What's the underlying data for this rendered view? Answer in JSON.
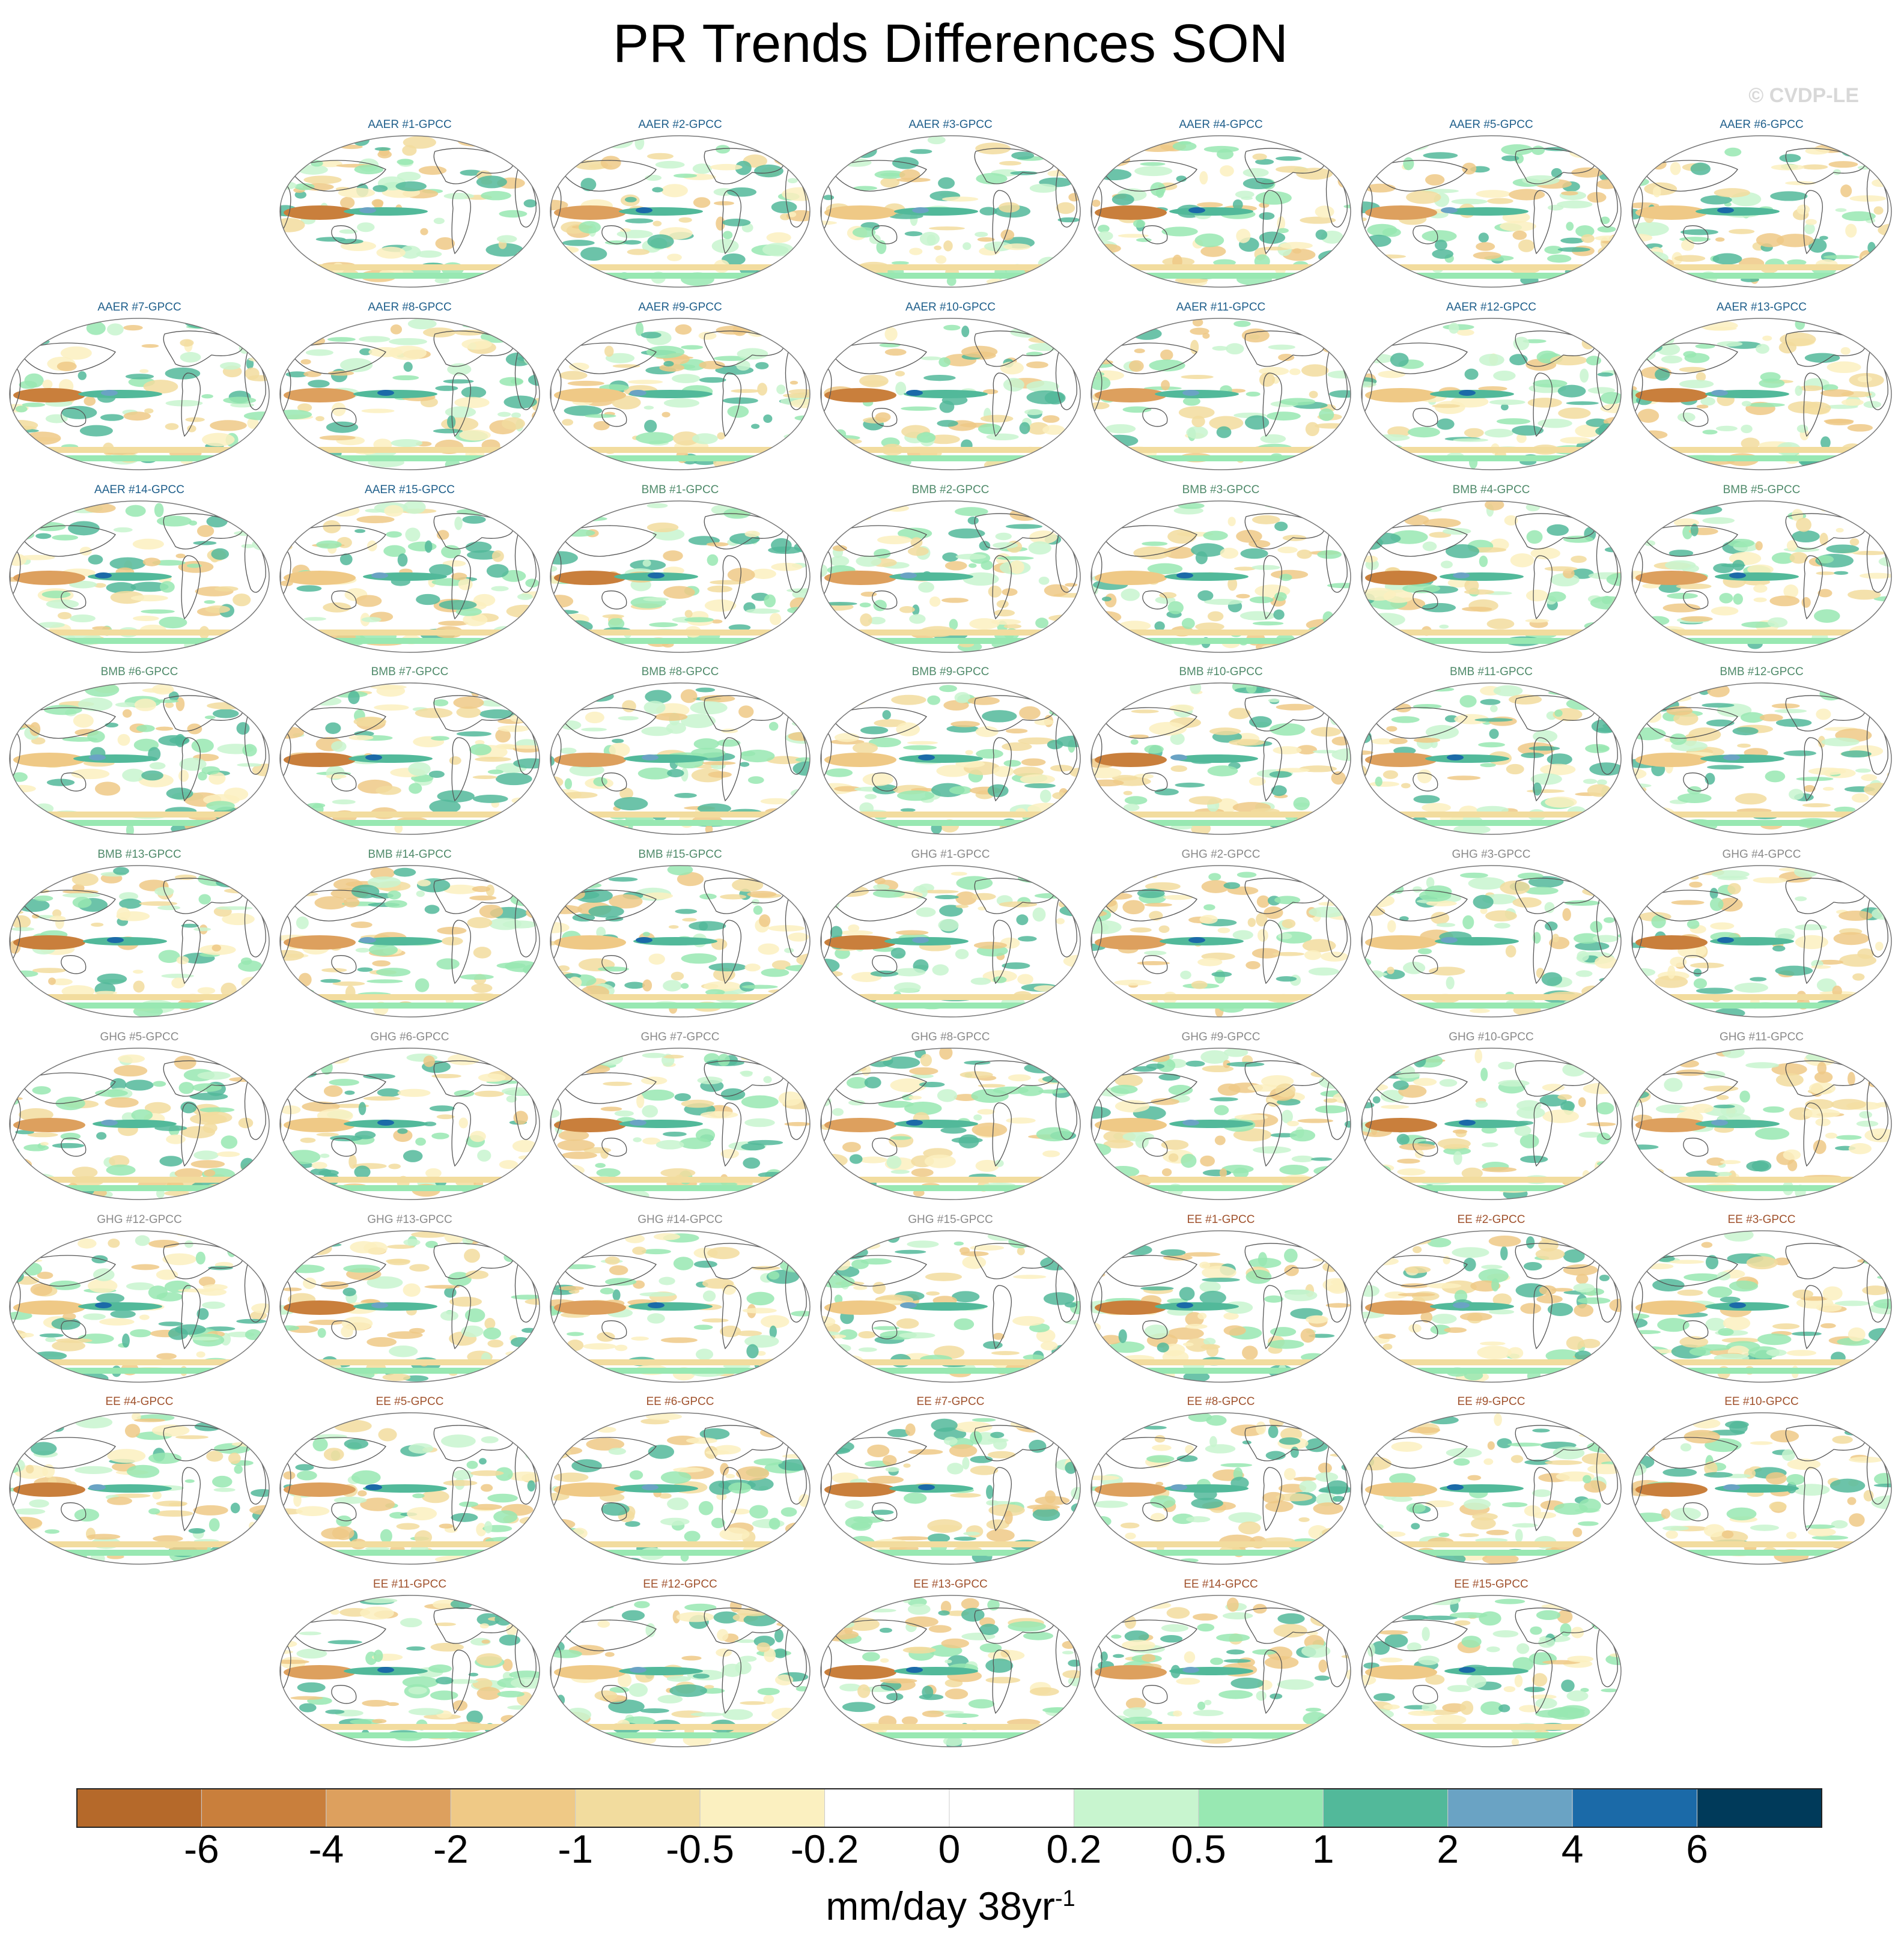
{
  "title": "PR Trends Differences SON",
  "copyright": "© CVDP-LE",
  "panels": [
    "AAER #1-GPCC",
    "AAER #2-GPCC",
    "AAER #3-GPCC",
    "AAER #4-GPCC",
    "AAER #5-GPCC",
    "AAER #6-GPCC",
    "AAER #7-GPCC",
    "AAER #8-GPCC",
    "AAER #9-GPCC",
    "AAER #10-GPCC",
    "AAER #11-GPCC",
    "AAER #12-GPCC",
    "AAER #13-GPCC",
    "AAER #14-GPCC",
    "AAER #15-GPCC",
    "BMB #1-GPCC",
    "BMB #2-GPCC",
    "BMB #3-GPCC",
    "BMB #4-GPCC",
    "BMB #5-GPCC",
    "BMB #6-GPCC",
    "BMB #7-GPCC",
    "BMB #8-GPCC",
    "BMB #9-GPCC",
    "BMB #10-GPCC",
    "BMB #11-GPCC",
    "BMB #12-GPCC",
    "BMB #13-GPCC",
    "BMB #14-GPCC",
    "BMB #15-GPCC",
    "GHG #1-GPCC",
    "GHG #2-GPCC",
    "GHG #3-GPCC",
    "GHG #4-GPCC",
    "GHG #5-GPCC",
    "GHG #6-GPCC",
    "GHG #7-GPCC",
    "GHG #8-GPCC",
    "GHG #9-GPCC",
    "GHG #10-GPCC",
    "GHG #11-GPCC",
    "GHG #12-GPCC",
    "GHG #13-GPCC",
    "GHG #14-GPCC",
    "GHG #15-GPCC",
    "EE #1-GPCC",
    "EE #2-GPCC",
    "EE #3-GPCC",
    "EE #4-GPCC",
    "EE #5-GPCC",
    "EE #6-GPCC",
    "EE #7-GPCC",
    "EE #8-GPCC",
    "EE #9-GPCC",
    "EE #10-GPCC",
    "EE #11-GPCC",
    "EE #12-GPCC",
    "EE #13-GPCC",
    "EE #14-GPCC",
    "EE #15-GPCC"
  ],
  "label_colors": {
    "AAER": "#1f5f8b",
    "BMB": "#4f8a6a",
    "GHG": "#8a8a8a",
    "EE": "#a0522d"
  },
  "colorbar": {
    "colors": [
      "#b5692a",
      "#c97f3c",
      "#dda05e",
      "#efc986",
      "#f2dc9e",
      "#fbf0c0",
      "#ffffff",
      "#ffffff",
      "#c8f5cf",
      "#98e8b2",
      "#52b99a",
      "#6aa3c4",
      "#1b6aa8",
      "#003a5a"
    ],
    "tick_labels": [
      "-6",
      "-4",
      "-2",
      "-1",
      "-0.5",
      "-0.2",
      "0",
      "0.2",
      "0.5",
      "1",
      "2",
      "4",
      "6"
    ],
    "units": "mm/day 38yr",
    "units_exponent": "-1"
  }
}
